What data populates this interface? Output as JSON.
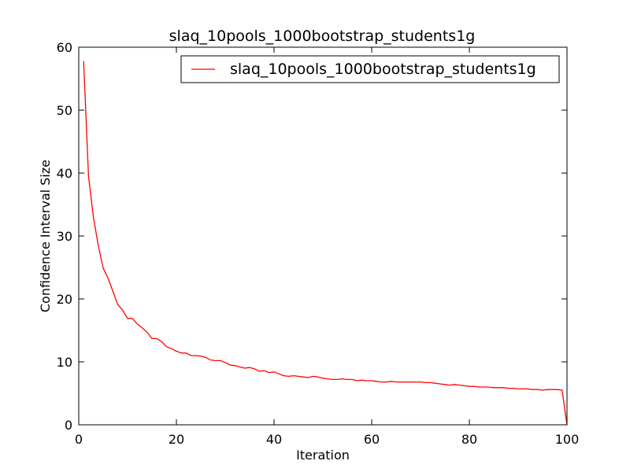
{
  "chart_data": {
    "type": "line",
    "title": "slaq_10pools_1000bootstrap_students1g",
    "xlabel": "Iteration",
    "ylabel": "Confidence Interval Size",
    "xlim": [
      0,
      100
    ],
    "ylim": [
      0,
      60
    ],
    "xticks": [
      "0",
      "20",
      "40",
      "60",
      "80",
      "100"
    ],
    "yticks": [
      "0",
      "10",
      "20",
      "30",
      "40",
      "50",
      "60"
    ],
    "grid": false,
    "legend_position": "top-right",
    "series": [
      {
        "name": "slaq_10pools_1000bootstrap_students1g",
        "color": "#ff0000",
        "x": [
          1,
          2,
          3,
          4,
          5,
          6,
          7,
          8,
          9,
          10,
          11,
          12,
          13,
          14,
          15,
          16,
          17,
          18,
          19,
          20,
          21,
          22,
          23,
          24,
          25,
          26,
          27,
          28,
          29,
          30,
          31,
          32,
          33,
          34,
          35,
          36,
          37,
          38,
          39,
          40,
          41,
          42,
          43,
          44,
          45,
          46,
          47,
          48,
          49,
          50,
          51,
          52,
          53,
          54,
          55,
          56,
          57,
          58,
          59,
          60,
          61,
          62,
          63,
          64,
          65,
          66,
          67,
          68,
          69,
          70,
          71,
          72,
          73,
          74,
          75,
          76,
          77,
          78,
          79,
          80,
          81,
          82,
          83,
          84,
          85,
          86,
          87,
          88,
          89,
          90,
          91,
          92,
          93,
          94,
          95,
          96,
          97,
          98,
          99,
          100
        ],
        "y": [
          57.8,
          39.5,
          33.0,
          28.5,
          24.9,
          23.3,
          21.2,
          19.1,
          18.2,
          16.9,
          16.9,
          16.0,
          15.4,
          14.7,
          13.7,
          13.7,
          13.2,
          12.4,
          12.1,
          11.7,
          11.4,
          11.4,
          11.0,
          11.0,
          10.9,
          10.7,
          10.3,
          10.2,
          10.2,
          9.9,
          9.5,
          9.4,
          9.2,
          9.0,
          9.1,
          8.9,
          8.5,
          8.6,
          8.3,
          8.4,
          8.1,
          7.8,
          7.7,
          7.8,
          7.7,
          7.6,
          7.5,
          7.7,
          7.6,
          7.4,
          7.3,
          7.2,
          7.2,
          7.3,
          7.2,
          7.2,
          7.0,
          7.1,
          7.0,
          7.0,
          6.9,
          6.8,
          6.8,
          6.9,
          6.8,
          6.8,
          6.8,
          6.8,
          6.8,
          6.8,
          6.7,
          6.7,
          6.6,
          6.5,
          6.4,
          6.3,
          6.4,
          6.3,
          6.2,
          6.1,
          6.1,
          6.0,
          6.0,
          6.0,
          5.9,
          5.9,
          5.9,
          5.8,
          5.8,
          5.7,
          5.7,
          5.7,
          5.6,
          5.6,
          5.5,
          5.6,
          5.6,
          5.6,
          5.5,
          0.0
        ]
      }
    ]
  }
}
